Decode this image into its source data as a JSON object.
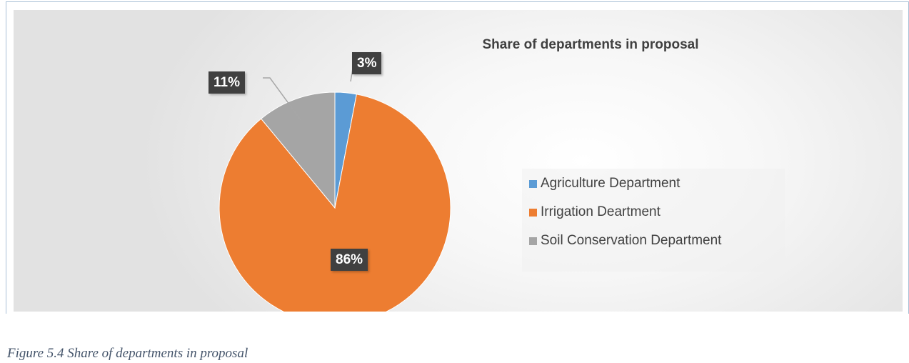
{
  "chart_data": {
    "type": "pie",
    "title": "Share of departments in proposal",
    "categories": [
      "Agriculture Department",
      "Irrigation Deartment",
      "Soil Conservation Department"
    ],
    "values": [
      3,
      86,
      11
    ],
    "value_labels": [
      "3%",
      "86%",
      "11%"
    ],
    "colors": [
      "#5b9bd5",
      "#ed7d31",
      "#a5a5a5"
    ],
    "legend_position": "right"
  },
  "caption": "Figure 5.4 Share of departments in proposal",
  "colors": {
    "label_box": "#404040",
    "frame": "#a9bfd6"
  }
}
